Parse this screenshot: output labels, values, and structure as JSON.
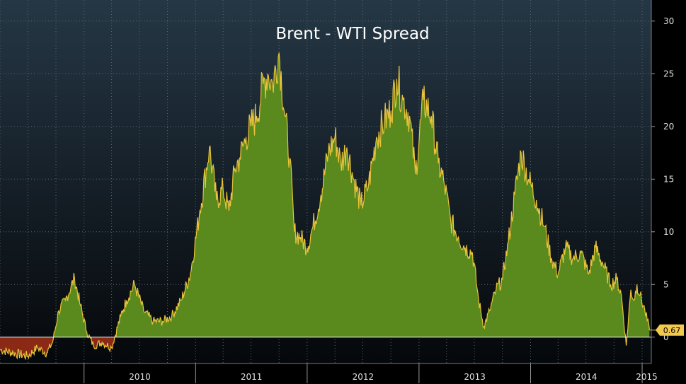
{
  "chart_data": {
    "type": "area",
    "title": "Brent - WTI Spread",
    "xlabel": "",
    "ylabel": "",
    "ylim": [
      -2.5,
      32
    ],
    "xlim": [
      "2009-04-01",
      "2015-01-31"
    ],
    "y_ticks": [
      0,
      5,
      10,
      15,
      20,
      25,
      30
    ],
    "x_tick_labels": [
      "2010",
      "2011",
      "2012",
      "2013",
      "2014",
      "2015"
    ],
    "grid": true,
    "legend": "none",
    "last_value": 0.67,
    "colors": {
      "positive_fill": "#5a8a1e",
      "negative_fill": "#8a2a16",
      "line": "#e8c43a",
      "last_value_bg": "#f2c94c"
    },
    "series": [
      {
        "x": [
          "2009-04-01",
          "2009-05-15",
          "2009-07-01",
          "2009-08-01",
          "2009-09-01",
          "2009-09-20",
          "2009-10-10",
          "2009-11-01",
          "2009-12-01",
          "2009-12-20",
          "2010-01-10",
          "2010-02-01",
          "2010-03-01",
          "2010-04-01",
          "2010-05-01",
          "2010-05-20",
          "2010-06-15",
          "2010-07-15",
          "2010-08-15",
          "2010-09-15",
          "2010-10-15",
          "2010-11-15",
          "2010-12-15",
          "2011-01-15",
          "2011-02-15",
          "2011-03-10",
          "2011-04-01",
          "2011-04-20",
          "2011-05-10",
          "2011-05-25",
          "2011-06-15",
          "2011-07-01",
          "2011-07-20",
          "2011-08-10",
          "2011-08-25",
          "2011-09-10",
          "2011-10-01",
          "2011-10-20",
          "2011-11-05",
          "2011-11-20",
          "2011-12-10",
          "2012-01-01",
          "2012-01-20",
          "2012-02-15",
          "2012-03-10",
          "2012-04-01",
          "2012-04-20",
          "2012-05-10",
          "2012-06-01",
          "2012-06-25",
          "2012-07-20",
          "2012-08-15",
          "2012-09-10",
          "2012-10-01",
          "2012-10-20",
          "2012-11-10",
          "2012-12-01",
          "2012-12-20",
          "2013-01-15",
          "2013-02-10",
          "2013-03-05",
          "2013-03-25",
          "2013-04-15",
          "2013-05-10",
          "2013-06-01",
          "2013-06-25",
          "2013-07-15",
          "2013-08-01",
          "2013-08-20",
          "2013-09-10",
          "2013-10-01",
          "2013-10-20",
          "2013-11-10",
          "2013-12-01",
          "2013-12-25",
          "2014-01-20",
          "2014-02-15",
          "2014-03-10",
          "2014-04-01",
          "2014-04-25",
          "2014-05-20",
          "2014-06-15",
          "2014-07-10",
          "2014-08-01",
          "2014-08-25",
          "2014-09-20",
          "2014-10-10",
          "2014-10-25",
          "2014-11-10",
          "2014-11-25",
          "2014-12-05",
          "2014-12-15",
          "2014-12-25",
          "2015-01-10",
          "2015-01-25"
        ],
        "values": [
          -1.2,
          -1.5,
          -1.8,
          -1.0,
          -1.5,
          -0.5,
          2.5,
          3.5,
          5.6,
          3.0,
          0.5,
          -0.8,
          -0.5,
          -1.0,
          2.0,
          3.5,
          5.0,
          2.5,
          1.5,
          1.5,
          2.0,
          3.5,
          6.0,
          12.0,
          18.0,
          13.0,
          14.0,
          12.0,
          16.0,
          17.0,
          19.0,
          20.0,
          21.0,
          24.0,
          25.0,
          24.0,
          27.0,
          21.0,
          17.0,
          10.0,
          9.5,
          8.5,
          10.5,
          13.5,
          17.5,
          19.0,
          16.5,
          18.0,
          15.0,
          12.5,
          14.5,
          19.0,
          20.5,
          21.5,
          24.5,
          22.5,
          21.0,
          15.5,
          22.5,
          21.0,
          16.5,
          14.5,
          11.0,
          9.5,
          8.5,
          8.0,
          3.5,
          1.0,
          2.5,
          4.5,
          5.5,
          9.0,
          13.5,
          17.5,
          15.0,
          13.0,
          10.5,
          7.5,
          6.0,
          8.5,
          7.5,
          8.0,
          6.0,
          8.5,
          7.0,
          5.0,
          5.5,
          4.0,
          -0.8,
          4.5,
          3.5,
          5.0,
          4.0,
          2.5,
          0.67
        ]
      }
    ]
  }
}
